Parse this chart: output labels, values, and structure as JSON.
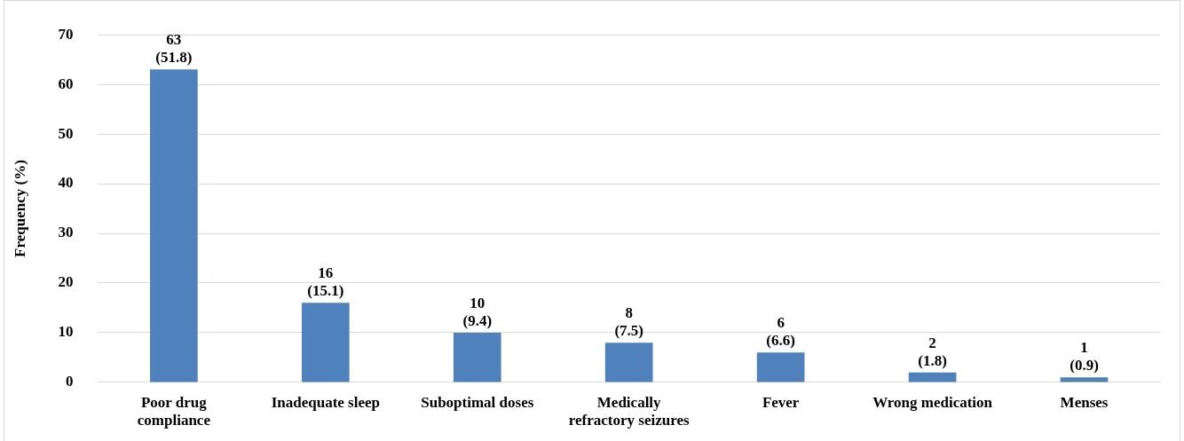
{
  "chart_data": {
    "type": "bar",
    "ylabel": "Frequency (%)",
    "categories": [
      "Poor drug compliance",
      "Inadequate sleep",
      "Suboptimal doses",
      "Medically refractory seizures",
      "Fever",
      "Wrong medication",
      "Menses"
    ],
    "values": [
      63,
      16,
      10,
      8,
      6,
      2,
      1
    ],
    "value_labels": [
      "63 (51.8)",
      "16 (15.1)",
      "10 (9.4)",
      "8 (7.5)",
      "6 (6.6)",
      "2 (1.8)",
      "1 (0.9)"
    ],
    "color": "#4f81bd",
    "ylim": [
      0,
      70
    ],
    "yticks": [
      0,
      10,
      20,
      30,
      40,
      50,
      60,
      70
    ],
    "grid": "y",
    "legend": false
  }
}
